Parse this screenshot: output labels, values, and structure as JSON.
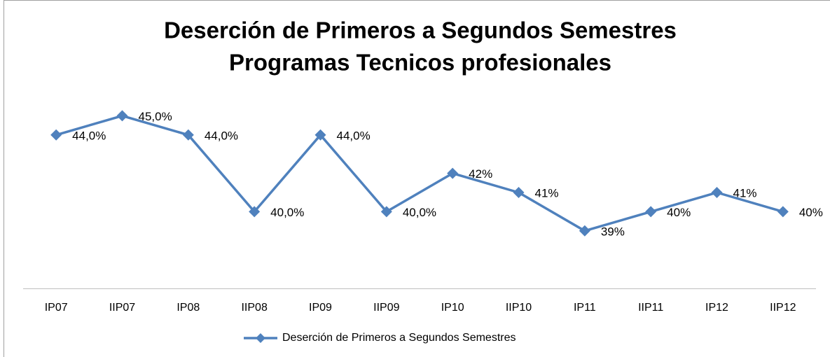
{
  "chart_data": {
    "type": "line",
    "title": [
      "Deserción de Primeros a Segundos Semestres",
      "Programas Tecnicos profesionales"
    ],
    "categories": [
      "IP07",
      "IIP07",
      "IP08",
      "IIP08",
      "IP09",
      "IIP09",
      "IP10",
      "IIP10",
      "IP11",
      "IIP11",
      "IP12",
      "IIP12"
    ],
    "series": [
      {
        "name": "Deserción de Primeros a Segundos Semestres",
        "color": "#4f81bd",
        "values": [
          44,
          45,
          44,
          40,
          44,
          40,
          42,
          41,
          39,
          40,
          41,
          40
        ],
        "value_labels": [
          "44,0%",
          "45,0%",
          "44,0%",
          "40,0%",
          "44,0%",
          "40,0%",
          "42%",
          "41%",
          "39%",
          "40%",
          "41%",
          "40%"
        ]
      }
    ],
    "ylim": [
      36,
      46
    ],
    "legend": "bottom"
  }
}
